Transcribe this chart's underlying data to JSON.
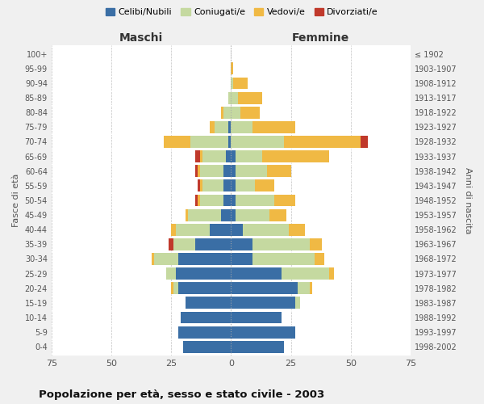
{
  "age_groups": [
    "0-4",
    "5-9",
    "10-14",
    "15-19",
    "20-24",
    "25-29",
    "30-34",
    "35-39",
    "40-44",
    "45-49",
    "50-54",
    "55-59",
    "60-64",
    "65-69",
    "70-74",
    "75-79",
    "80-84",
    "85-89",
    "90-94",
    "95-99",
    "100+"
  ],
  "birth_years": [
    "1998-2002",
    "1993-1997",
    "1988-1992",
    "1983-1987",
    "1978-1982",
    "1973-1977",
    "1968-1972",
    "1963-1967",
    "1958-1962",
    "1953-1957",
    "1948-1952",
    "1943-1947",
    "1938-1942",
    "1933-1937",
    "1928-1932",
    "1923-1927",
    "1918-1922",
    "1913-1917",
    "1908-1912",
    "1903-1907",
    "≤ 1902"
  ],
  "maschi": {
    "celibi": [
      20,
      22,
      21,
      19,
      22,
      23,
      22,
      15,
      9,
      4,
      3,
      3,
      3,
      2,
      1,
      1,
      0,
      0,
      0,
      0,
      0
    ],
    "coniugati": [
      0,
      0,
      0,
      0,
      2,
      4,
      10,
      9,
      14,
      14,
      10,
      9,
      10,
      10,
      16,
      6,
      3,
      1,
      0,
      0,
      0
    ],
    "vedovi": [
      0,
      0,
      0,
      0,
      1,
      0,
      1,
      0,
      2,
      1,
      1,
      1,
      1,
      1,
      11,
      2,
      1,
      0,
      0,
      0,
      0
    ],
    "divorziati": [
      0,
      0,
      0,
      0,
      0,
      0,
      0,
      2,
      0,
      0,
      1,
      1,
      1,
      2,
      0,
      0,
      0,
      0,
      0,
      0,
      0
    ]
  },
  "femmine": {
    "nubili": [
      22,
      27,
      21,
      27,
      28,
      21,
      9,
      9,
      5,
      2,
      2,
      2,
      2,
      2,
      0,
      0,
      0,
      0,
      0,
      0,
      0
    ],
    "coniugate": [
      0,
      0,
      0,
      2,
      5,
      20,
      26,
      24,
      19,
      14,
      16,
      8,
      13,
      11,
      22,
      9,
      4,
      3,
      1,
      0,
      0
    ],
    "vedove": [
      0,
      0,
      0,
      0,
      1,
      2,
      4,
      5,
      7,
      7,
      9,
      8,
      10,
      28,
      32,
      18,
      8,
      10,
      6,
      1,
      0
    ],
    "divorziate": [
      0,
      0,
      0,
      0,
      0,
      0,
      0,
      0,
      0,
      0,
      0,
      0,
      0,
      0,
      3,
      0,
      0,
      0,
      0,
      0,
      0
    ]
  },
  "colors": {
    "celibi": "#3a6ea5",
    "coniugati": "#c5d9a0",
    "vedovi": "#f0b944",
    "divorziati": "#c0392b"
  },
  "xlim": 75,
  "title": "Popolazione per età, sesso e stato civile - 2003",
  "ylabel": "Fasce di età",
  "ylabel_right": "Anni di nascita",
  "xlabel_left": "Maschi",
  "xlabel_right": "Femmine",
  "legend_labels": [
    "Celibi/Nubili",
    "Coniugati/e",
    "Vedovi/e",
    "Divorziati/e"
  ],
  "background_color": "#f0f0f0",
  "plot_background": "#ffffff"
}
